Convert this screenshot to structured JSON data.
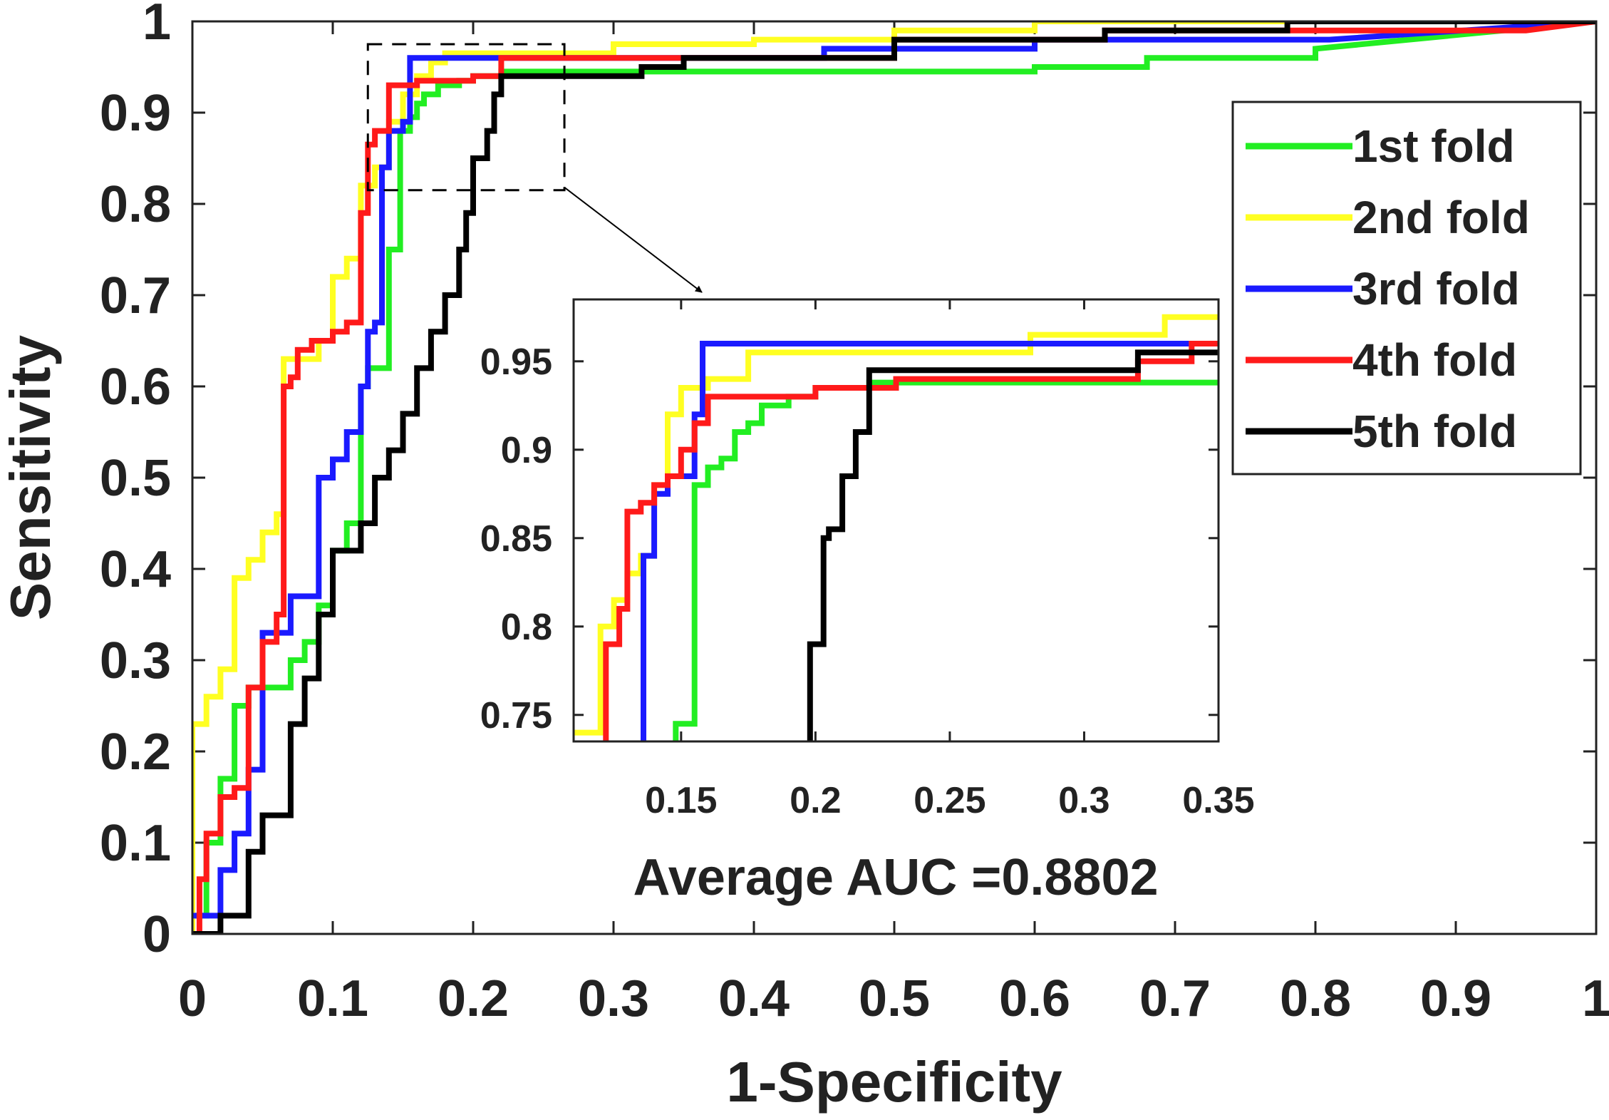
{
  "chart_data": [
    {
      "id": "main",
      "type": "line",
      "xlabel": "1-Specificity",
      "ylabel": "Sensitivity",
      "xlim": [
        0,
        1
      ],
      "ylim": [
        0,
        1
      ],
      "xticks": [
        0,
        0.1,
        0.2,
        0.3,
        0.4,
        0.5,
        0.6,
        0.7,
        0.8,
        0.9,
        1
      ],
      "xtick_labels": [
        "0",
        "0.1",
        "0.2",
        "0.3",
        "0.4",
        "0.5",
        "0.6",
        "0.7",
        "0.8",
        "0.9",
        "1"
      ],
      "yticks": [
        0,
        0.1,
        0.2,
        0.3,
        0.4,
        0.5,
        0.6,
        0.7,
        0.8,
        0.9,
        1
      ],
      "ytick_labels": [
        "0",
        "0.1",
        "0.2",
        "0.3",
        "0.4",
        "0.5",
        "0.6",
        "0.7",
        "0.8",
        "0.9",
        "1"
      ],
      "legend_position": "upper-right",
      "annotation": "Average AUC =0.8802",
      "zoom_region": {
        "x": [
          0.125,
          0.265
        ],
        "y": [
          0.815,
          0.975
        ]
      },
      "series": [
        {
          "name": "1st fold",
          "color": "#22ee22",
          "x": [
            0,
            0.01,
            0.01,
            0.02,
            0.02,
            0.03,
            0.03,
            0.04,
            0.04,
            0.07,
            0.07,
            0.08,
            0.08,
            0.09,
            0.09,
            0.1,
            0.1,
            0.11,
            0.11,
            0.12,
            0.12,
            0.125,
            0.125,
            0.14,
            0.14,
            0.148,
            0.148,
            0.155,
            0.155,
            0.16,
            0.16,
            0.165,
            0.165,
            0.175,
            0.175,
            0.19,
            0.19,
            0.2,
            0.2,
            0.22,
            0.22,
            0.3,
            0.6,
            0.6,
            0.68,
            0.68,
            0.8,
            0.8,
            1
          ],
          "y": [
            0.02,
            0.02,
            0.1,
            0.1,
            0.17,
            0.17,
            0.25,
            0.25,
            0.27,
            0.27,
            0.3,
            0.3,
            0.32,
            0.32,
            0.36,
            0.36,
            0.42,
            0.42,
            0.45,
            0.45,
            0.6,
            0.6,
            0.62,
            0.62,
            0.75,
            0.75,
            0.88,
            0.88,
            0.895,
            0.895,
            0.91,
            0.91,
            0.92,
            0.92,
            0.93,
            0.93,
            0.935,
            0.935,
            0.94,
            0.94,
            0.945,
            0.945,
            0.945,
            0.95,
            0.95,
            0.96,
            0.96,
            0.97,
            1.0
          ]
        },
        {
          "name": "2nd fold",
          "color": "#ffff22",
          "x": [
            0,
            0,
            0.01,
            0.01,
            0.02,
            0.02,
            0.03,
            0.03,
            0.04,
            0.04,
            0.05,
            0.05,
            0.06,
            0.06,
            0.065,
            0.065,
            0.09,
            0.09,
            0.1,
            0.1,
            0.11,
            0.11,
            0.12,
            0.12,
            0.13,
            0.13,
            0.14,
            0.14,
            0.15,
            0.15,
            0.16,
            0.16,
            0.17,
            0.17,
            0.18,
            0.18,
            0.3,
            0.3,
            0.4,
            0.4,
            0.5,
            0.5,
            0.6,
            0.6,
            0.8,
            0.8,
            1
          ],
          "y": [
            0,
            0.23,
            0.23,
            0.26,
            0.26,
            0.29,
            0.29,
            0.39,
            0.39,
            0.41,
            0.41,
            0.44,
            0.44,
            0.46,
            0.46,
            0.63,
            0.63,
            0.65,
            0.65,
            0.72,
            0.72,
            0.74,
            0.74,
            0.82,
            0.82,
            0.84,
            0.84,
            0.89,
            0.89,
            0.92,
            0.92,
            0.94,
            0.94,
            0.955,
            0.955,
            0.965,
            0.965,
            0.975,
            0.975,
            0.98,
            0.98,
            0.99,
            0.99,
            1.0,
            1.0,
            1.0,
            1.0
          ]
        },
        {
          "name": "3rd fold",
          "color": "#1a1aff",
          "x": [
            0,
            0.02,
            0.02,
            0.03,
            0.03,
            0.04,
            0.04,
            0.05,
            0.05,
            0.07,
            0.07,
            0.09,
            0.09,
            0.1,
            0.1,
            0.11,
            0.11,
            0.12,
            0.12,
            0.125,
            0.125,
            0.13,
            0.13,
            0.135,
            0.135,
            0.14,
            0.14,
            0.15,
            0.15,
            0.155,
            0.155,
            0.45,
            0.45,
            0.6,
            0.6,
            0.81,
            1
          ],
          "y": [
            0.02,
            0.02,
            0.07,
            0.07,
            0.11,
            0.11,
            0.18,
            0.18,
            0.33,
            0.33,
            0.37,
            0.37,
            0.5,
            0.5,
            0.52,
            0.52,
            0.55,
            0.55,
            0.6,
            0.6,
            0.66,
            0.66,
            0.67,
            0.67,
            0.84,
            0.84,
            0.88,
            0.88,
            0.89,
            0.89,
            0.96,
            0.96,
            0.97,
            0.97,
            0.98,
            0.98,
            1.0
          ]
        },
        {
          "name": "4th fold",
          "color": "#ff1a1a",
          "x": [
            0,
            0.005,
            0.005,
            0.01,
            0.01,
            0.02,
            0.02,
            0.03,
            0.03,
            0.04,
            0.04,
            0.05,
            0.05,
            0.06,
            0.06,
            0.065,
            0.065,
            0.07,
            0.07,
            0.075,
            0.075,
            0.085,
            0.085,
            0.1,
            0.1,
            0.11,
            0.11,
            0.12,
            0.12,
            0.125,
            0.125,
            0.13,
            0.13,
            0.14,
            0.14,
            0.16,
            0.16,
            0.2,
            0.2,
            0.22,
            0.22,
            0.5,
            0.5,
            0.65,
            0.65,
            0.95,
            1
          ],
          "y": [
            0,
            0,
            0.06,
            0.06,
            0.11,
            0.11,
            0.15,
            0.15,
            0.16,
            0.16,
            0.27,
            0.27,
            0.32,
            0.32,
            0.35,
            0.35,
            0.6,
            0.6,
            0.61,
            0.61,
            0.64,
            0.64,
            0.65,
            0.65,
            0.66,
            0.66,
            0.67,
            0.67,
            0.79,
            0.79,
            0.865,
            0.865,
            0.88,
            0.88,
            0.93,
            0.93,
            0.935,
            0.935,
            0.94,
            0.94,
            0.96,
            0.96,
            0.98,
            0.98,
            0.99,
            0.99,
            1.0
          ]
        },
        {
          "name": "5th fold",
          "color": "#000000",
          "x": [
            0,
            0.02,
            0.02,
            0.04,
            0.04,
            0.05,
            0.05,
            0.07,
            0.07,
            0.08,
            0.08,
            0.09,
            0.09,
            0.1,
            0.1,
            0.12,
            0.12,
            0.13,
            0.13,
            0.14,
            0.14,
            0.15,
            0.15,
            0.16,
            0.16,
            0.17,
            0.17,
            0.18,
            0.18,
            0.19,
            0.19,
            0.195,
            0.195,
            0.2,
            0.2,
            0.21,
            0.21,
            0.215,
            0.215,
            0.22,
            0.22,
            0.32,
            0.32,
            0.35,
            0.35,
            0.5,
            0.5,
            0.65,
            0.65,
            0.78,
            0.78,
            1
          ],
          "y": [
            0,
            0,
            0.02,
            0.02,
            0.09,
            0.09,
            0.13,
            0.13,
            0.23,
            0.23,
            0.28,
            0.28,
            0.35,
            0.35,
            0.42,
            0.42,
            0.45,
            0.45,
            0.5,
            0.5,
            0.53,
            0.53,
            0.57,
            0.57,
            0.62,
            0.62,
            0.66,
            0.66,
            0.7,
            0.7,
            0.75,
            0.75,
            0.79,
            0.79,
            0.85,
            0.85,
            0.88,
            0.88,
            0.92,
            0.92,
            0.94,
            0.94,
            0.95,
            0.95,
            0.96,
            0.96,
            0.98,
            0.98,
            0.99,
            0.99,
            1.0,
            1.0
          ]
        }
      ]
    },
    {
      "id": "inset",
      "type": "line",
      "xlim": [
        0.11,
        0.35
      ],
      "ylim": [
        0.735,
        0.985
      ],
      "xticks": [
        0.15,
        0.2,
        0.25,
        0.3,
        0.35
      ],
      "xtick_labels": [
        "0.15",
        "0.2",
        "0.25",
        "0.3",
        "0.35"
      ],
      "yticks": [
        0.75,
        0.8,
        0.85,
        0.9,
        0.95
      ],
      "ytick_labels": [
        "0.75",
        "0.8",
        "0.85",
        "0.9",
        "0.95"
      ],
      "series": [
        {
          "name": "1st fold",
          "color": "#22ee22",
          "x": [
            0.148,
            0.148,
            0.155,
            0.155,
            0.16,
            0.16,
            0.165,
            0.165,
            0.17,
            0.17,
            0.175,
            0.175,
            0.18,
            0.18,
            0.19,
            0.19,
            0.2,
            0.2,
            0.22,
            0.22,
            0.35
          ],
          "y": [
            0.735,
            0.745,
            0.745,
            0.88,
            0.88,
            0.89,
            0.89,
            0.895,
            0.895,
            0.91,
            0.91,
            0.915,
            0.915,
            0.925,
            0.925,
            0.93,
            0.93,
            0.935,
            0.935,
            0.938,
            0.938
          ]
        },
        {
          "name": "2nd fold",
          "color": "#ffff22",
          "x": [
            0.11,
            0.12,
            0.12,
            0.125,
            0.125,
            0.13,
            0.13,
            0.135,
            0.135,
            0.14,
            0.14,
            0.145,
            0.145,
            0.15,
            0.15,
            0.16,
            0.16,
            0.175,
            0.175,
            0.28,
            0.28,
            0.33,
            0.33,
            0.35
          ],
          "y": [
            0.74,
            0.74,
            0.8,
            0.8,
            0.815,
            0.815,
            0.83,
            0.83,
            0.84,
            0.84,
            0.88,
            0.88,
            0.92,
            0.92,
            0.935,
            0.935,
            0.94,
            0.94,
            0.955,
            0.955,
            0.965,
            0.965,
            0.975,
            0.975
          ]
        },
        {
          "name": "3rd fold",
          "color": "#1a1aff",
          "x": [
            0.136,
            0.136,
            0.14,
            0.14,
            0.145,
            0.145,
            0.155,
            0.155,
            0.158,
            0.158,
            0.35
          ],
          "y": [
            0.735,
            0.84,
            0.84,
            0.875,
            0.875,
            0.885,
            0.885,
            0.92,
            0.92,
            0.96,
            0.96
          ]
        },
        {
          "name": "4th fold",
          "color": "#ff1a1a",
          "x": [
            0.122,
            0.122,
            0.127,
            0.127,
            0.13,
            0.13,
            0.135,
            0.135,
            0.14,
            0.14,
            0.145,
            0.145,
            0.15,
            0.15,
            0.155,
            0.155,
            0.16,
            0.16,
            0.2,
            0.2,
            0.23,
            0.23,
            0.32,
            0.32,
            0.34,
            0.34,
            0.35
          ],
          "y": [
            0.735,
            0.79,
            0.79,
            0.81,
            0.81,
            0.865,
            0.865,
            0.87,
            0.87,
            0.88,
            0.88,
            0.885,
            0.885,
            0.9,
            0.9,
            0.915,
            0.915,
            0.93,
            0.93,
            0.935,
            0.935,
            0.94,
            0.94,
            0.95,
            0.95,
            0.96,
            0.96
          ]
        },
        {
          "name": "5th fold",
          "color": "#000000",
          "x": [
            0.198,
            0.198,
            0.203,
            0.203,
            0.205,
            0.205,
            0.21,
            0.21,
            0.215,
            0.215,
            0.22,
            0.22,
            0.32,
            0.32,
            0.35
          ],
          "y": [
            0.735,
            0.79,
            0.79,
            0.85,
            0.85,
            0.855,
            0.855,
            0.885,
            0.885,
            0.91,
            0.91,
            0.945,
            0.945,
            0.955,
            0.955
          ]
        }
      ]
    }
  ]
}
